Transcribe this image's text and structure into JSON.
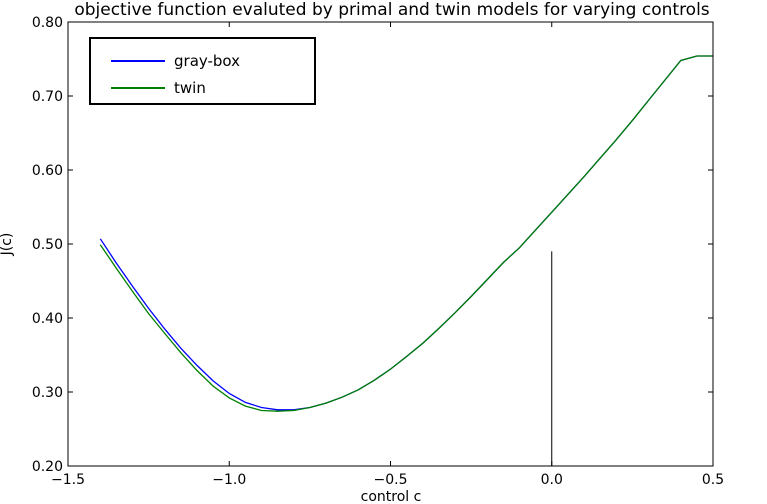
{
  "chart_data": {
    "type": "line",
    "title": "objective function evaluted by primal and twin models for varying controls",
    "xlabel": "control c",
    "ylabel": "J(c)",
    "xlim": [
      -1.5,
      0.5
    ],
    "ylim": [
      0.2,
      0.8
    ],
    "x_ticks": [
      -1.5,
      -1.0,
      -0.5,
      0.0,
      0.5
    ],
    "x_tick_labels": [
      "−1.5",
      "−1.0",
      "−0.5",
      "0.0",
      "0.5"
    ],
    "y_ticks": [
      0.2,
      0.3,
      0.4,
      0.5,
      0.6,
      0.7,
      0.8
    ],
    "y_tick_labels": [
      "0.20",
      "0.30",
      "0.40",
      "0.50",
      "0.60",
      "0.70",
      "0.80"
    ],
    "grid": false,
    "legend_position": "top-left",
    "series": [
      {
        "name": "gray-box",
        "color": "#0000ff",
        "x": [
          -1.4,
          -1.35,
          -1.3,
          -1.25,
          -1.2,
          -1.15,
          -1.1,
          -1.05,
          -1.0,
          -0.95,
          -0.9,
          -0.85,
          -0.8,
          -0.75,
          -0.7,
          -0.65,
          -0.6,
          -0.55,
          -0.5,
          -0.45,
          -0.4,
          -0.35,
          -0.3,
          -0.25,
          -0.2,
          -0.15,
          -0.1,
          -0.05,
          0.0,
          0.05,
          0.1,
          0.15,
          0.2,
          0.25,
          0.3,
          0.35,
          0.4,
          0.45,
          0.5
        ],
        "y": [
          0.507,
          0.474,
          0.443,
          0.413,
          0.385,
          0.359,
          0.336,
          0.315,
          0.298,
          0.286,
          0.279,
          0.276,
          0.276,
          0.279,
          0.285,
          0.293,
          0.303,
          0.316,
          0.331,
          0.348,
          0.366,
          0.386,
          0.407,
          0.429,
          0.452,
          0.475,
          0.495,
          0.519,
          0.543,
          0.567,
          0.591,
          0.616,
          0.641,
          0.667,
          0.694,
          0.721,
          0.748,
          0.754,
          0.754
        ]
      },
      {
        "name": "twin",
        "color": "#008000",
        "x": [
          -1.4,
          -1.35,
          -1.3,
          -1.25,
          -1.2,
          -1.15,
          -1.1,
          -1.05,
          -1.0,
          -0.95,
          -0.9,
          -0.85,
          -0.8,
          -0.75,
          -0.7,
          -0.65,
          -0.6,
          -0.55,
          -0.5,
          -0.45,
          -0.4,
          -0.35,
          -0.3,
          -0.25,
          -0.2,
          -0.15,
          -0.1,
          -0.05,
          0.0,
          0.05,
          0.1,
          0.15,
          0.2,
          0.25,
          0.3,
          0.35,
          0.4,
          0.45,
          0.5
        ],
        "y": [
          0.499,
          0.467,
          0.436,
          0.406,
          0.379,
          0.353,
          0.329,
          0.308,
          0.292,
          0.281,
          0.275,
          0.274,
          0.275,
          0.279,
          0.285,
          0.293,
          0.303,
          0.316,
          0.331,
          0.348,
          0.366,
          0.386,
          0.407,
          0.429,
          0.452,
          0.475,
          0.495,
          0.519,
          0.543,
          0.567,
          0.591,
          0.616,
          0.641,
          0.667,
          0.694,
          0.721,
          0.748,
          0.754,
          0.754
        ]
      }
    ],
    "annotations": [
      {
        "type": "vline",
        "x": 0.0,
        "y_from": 0.2,
        "y_to": 0.49
      }
    ]
  }
}
